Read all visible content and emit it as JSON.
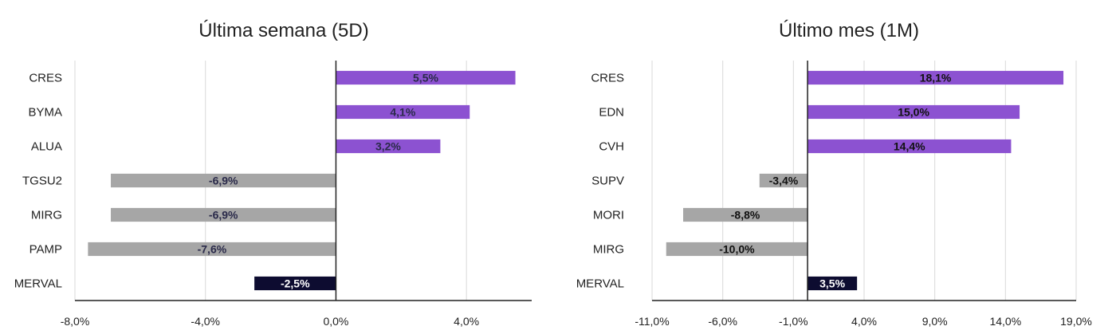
{
  "chart_data": [
    {
      "type": "bar",
      "orientation": "horizontal",
      "title": "Última semana (5D)",
      "categories": [
        "CRES",
        "BYMA",
        "ALUA",
        "TGSU2",
        "MIRG",
        "PAMP",
        "MERVAL"
      ],
      "values": [
        5.5,
        4.1,
        3.2,
        -6.9,
        -6.9,
        -7.6,
        -2.5
      ],
      "data_labels": [
        "5,5%",
        "4,1%",
        "3,2%",
        "-6,9%",
        "-6,9%",
        "-7,6%",
        "-2,5%"
      ],
      "xlim": [
        -8,
        6
      ],
      "xticks": [
        -8,
        -4,
        0,
        4
      ],
      "xtick_labels": [
        "-8,0%",
        "-4,0%",
        "0,0%",
        "4,0%"
      ],
      "grid": true,
      "colors": {
        "positive": "#8c52d1",
        "negative": "#a6a6a6",
        "index": "#0d0c30",
        "label_dark": "#2a2a4a",
        "label_light": "#ffffff"
      }
    },
    {
      "type": "bar",
      "orientation": "horizontal",
      "title": "Último mes (1M)",
      "categories": [
        "CRES",
        "EDN",
        "CVH",
        "SUPV",
        "MORI",
        "MIRG",
        "MERVAL"
      ],
      "values": [
        18.1,
        15.0,
        14.4,
        -3.4,
        -8.8,
        -10.0,
        3.5
      ],
      "data_labels": [
        "18,1%",
        "15,0%",
        "14,4%",
        "-3,4%",
        "-8,8%",
        "-10,0%",
        "3,5%"
      ],
      "xlim": [
        -11,
        19
      ],
      "xticks": [
        -11,
        -6,
        -1,
        4,
        9,
        14,
        19
      ],
      "xtick_labels": [
        "-11,0%",
        "-6,0%",
        "-1,0%",
        "4,0%",
        "9,0%",
        "14,0%",
        "19,0%"
      ],
      "grid": true,
      "colors": {
        "positive": "#8c52d1",
        "negative": "#a6a6a6",
        "index": "#0d0c30",
        "label_dark": "#111111",
        "label_light": "#ffffff"
      }
    }
  ]
}
